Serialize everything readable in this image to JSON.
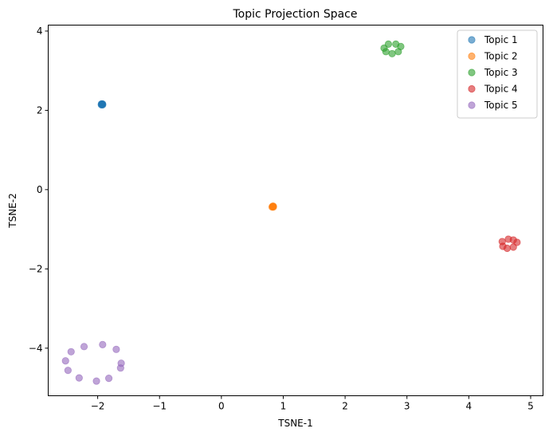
{
  "chart_data": {
    "type": "scatter",
    "title": "Topic Projection Space",
    "xlabel": "TSNE-1",
    "ylabel": "TSNE-2",
    "xlim": [
      -2.8,
      5.2
    ],
    "ylim": [
      -5.2,
      4.15
    ],
    "xticks": [
      -2,
      -1,
      0,
      1,
      2,
      3,
      4,
      5
    ],
    "yticks": [
      -4,
      -2,
      0,
      2,
      4
    ],
    "grid": false,
    "legend_position": "top-right",
    "series": [
      {
        "name": "Topic 1",
        "color": "#1f77b4",
        "points": [
          [
            -1.93,
            2.15
          ],
          [
            -1.92,
            2.16
          ],
          [
            -1.94,
            2.14
          ],
          [
            -1.93,
            2.16
          ],
          [
            -1.92,
            2.14
          ],
          [
            -1.94,
            2.16
          ]
        ]
      },
      {
        "name": "Topic 2",
        "color": "#ff7f0e",
        "points": [
          [
            0.83,
            -0.43
          ],
          [
            0.84,
            -0.42
          ],
          [
            0.82,
            -0.44
          ],
          [
            0.83,
            -0.42
          ],
          [
            0.84,
            -0.44
          ]
        ]
      },
      {
        "name": "Topic 3",
        "color": "#2ca02c",
        "points": [
          [
            2.7,
            3.67
          ],
          [
            2.82,
            3.67
          ],
          [
            2.9,
            3.61
          ],
          [
            2.86,
            3.48
          ],
          [
            2.76,
            3.43
          ],
          [
            2.66,
            3.48
          ],
          [
            2.63,
            3.57
          ]
        ]
      },
      {
        "name": "Topic 4",
        "color": "#d62728",
        "points": [
          [
            4.64,
            -1.25
          ],
          [
            4.72,
            -1.27
          ],
          [
            4.78,
            -1.33
          ],
          [
            4.72,
            -1.45
          ],
          [
            4.62,
            -1.48
          ],
          [
            4.55,
            -1.43
          ],
          [
            4.54,
            -1.31
          ]
        ]
      },
      {
        "name": "Topic 5",
        "color": "#9467bd",
        "points": [
          [
            -1.92,
            -3.91
          ],
          [
            -1.7,
            -4.03
          ],
          [
            -1.62,
            -4.38
          ],
          [
            -1.63,
            -4.5
          ],
          [
            -1.82,
            -4.76
          ],
          [
            -2.02,
            -4.83
          ],
          [
            -2.3,
            -4.75
          ],
          [
            -2.48,
            -4.56
          ],
          [
            -2.52,
            -4.32
          ],
          [
            -2.43,
            -4.09
          ],
          [
            -2.22,
            -3.96
          ]
        ]
      }
    ]
  }
}
